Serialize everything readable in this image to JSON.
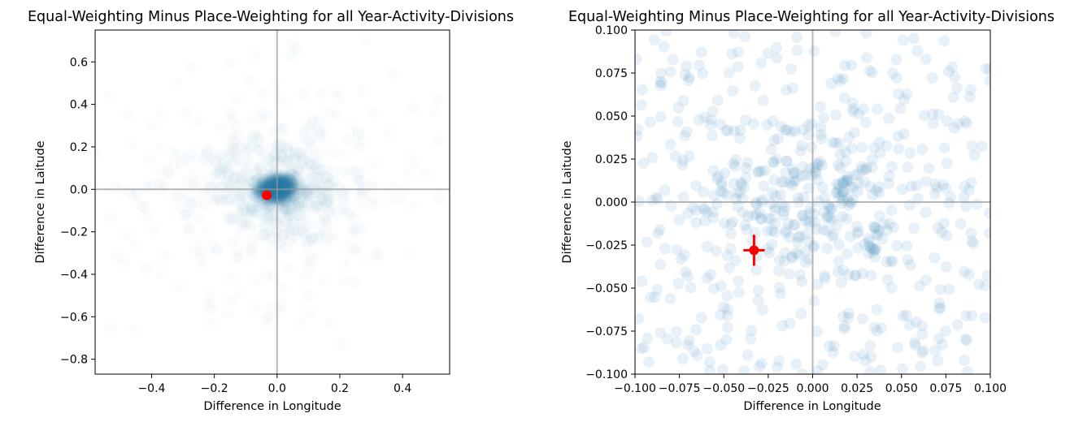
{
  "chart_data": [
    {
      "type": "scatter",
      "title": "Equal-Weighting Minus Place-Weighting for all Year-Activity-Divisions",
      "xlabel": "Difference in Longitude",
      "ylabel": "Difference in Laitude",
      "xlim": [
        -0.58,
        0.55
      ],
      "ylim": [
        -0.87,
        0.75
      ],
      "xticks": [
        -0.4,
        -0.2,
        0.0,
        0.2,
        0.4
      ],
      "xtick_labels": [
        "−0.4",
        "−0.2",
        "0.0",
        "0.2",
        "0.4"
      ],
      "yticks": [
        0.6,
        0.4,
        0.2,
        0.0,
        -0.2,
        -0.4,
        -0.6,
        -0.8
      ],
      "ytick_labels": [
        "0.6",
        "0.4",
        "0.2",
        "0.0",
        "−0.2",
        "−0.4",
        "−0.6",
        "−0.8"
      ],
      "reference_lines": {
        "x": 0.0,
        "y": 0.0
      },
      "scatter_color": "#2c7fb8",
      "highlight": {
        "x": -0.033,
        "y": -0.028,
        "color": "#ff0000"
      },
      "points_note_density": "heavily concentrated near origin, faint halo to roughly ±0.5"
    },
    {
      "type": "scatter",
      "title": "Equal-Weighting Minus Place-Weighting for all Year-Activity-Divisions",
      "xlabel": "Difference in Longitude",
      "ylabel": "Difference in Laitude",
      "xlim": [
        -0.1,
        0.1
      ],
      "ylim": [
        -0.1,
        0.1
      ],
      "xticks": [
        -0.1,
        -0.075,
        -0.05,
        -0.025,
        0.0,
        0.025,
        0.05,
        0.075,
        0.1
      ],
      "xtick_labels": [
        "−0.100",
        "−0.075",
        "−0.050",
        "−0.025",
        "0.000",
        "0.025",
        "0.050",
        "0.075",
        "0.100"
      ],
      "yticks": [
        0.1,
        0.075,
        0.05,
        0.025,
        0.0,
        -0.025,
        -0.05,
        -0.075,
        -0.1
      ],
      "ytick_labels": [
        "0.100",
        "0.075",
        "0.050",
        "0.025",
        "0.000",
        "−0.025",
        "−0.050",
        "−0.075",
        "−0.100"
      ],
      "reference_lines": {
        "x": 0.0,
        "y": 0.0
      },
      "scatter_color": "#4a8fc4",
      "highlight": {
        "x": -0.033,
        "y": -0.028,
        "xerr": 0.006,
        "yerr": 0.009,
        "color": "#ff0000"
      }
    }
  ]
}
